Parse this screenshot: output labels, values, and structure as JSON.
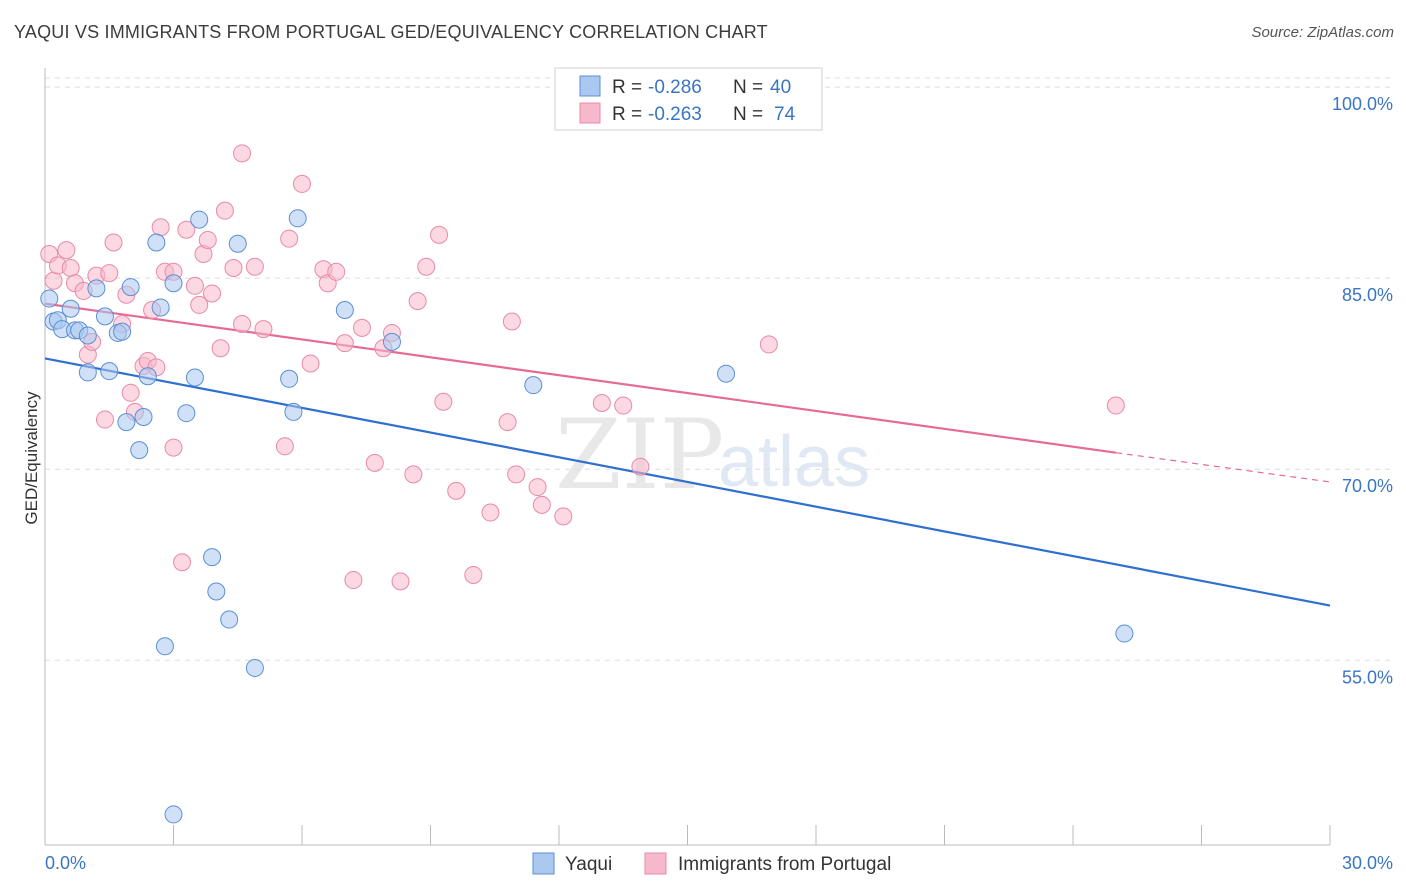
{
  "title": "YAQUI VS IMMIGRANTS FROM PORTUGAL GED/EQUIVALENCY CORRELATION CHART",
  "source": "Source: ZipAtlas.com",
  "watermark": {
    "part1": "ZIP",
    "part2": "atlas"
  },
  "legend_top": [
    {
      "r_label": "R = ",
      "r_value": "-0.286",
      "n_label": "N = ",
      "n_value": "40"
    },
    {
      "r_label": "R = ",
      "r_value": "-0.263",
      "n_label": "N = ",
      "n_value": "74"
    }
  ],
  "colors": {
    "blue_fill": "#aac8f0",
    "blue_stroke": "#5b8fd6",
    "blue_line": "#2f6fcf",
    "pink_fill": "#f7b8cb",
    "pink_stroke": "#e98aa8",
    "pink_line": "#e56b96",
    "grid": "#dddddd",
    "axis_text": "#3a75c4"
  },
  "chart_data": {
    "type": "scatter",
    "title": "YAQUI VS IMMIGRANTS FROM PORTUGAL GED/EQUIVALENCY CORRELATION CHART",
    "xlabel": "",
    "ylabel": "GED/Equivalency",
    "xlim": [
      0,
      30
    ],
    "ylim": [
      40.5,
      101.5
    ],
    "x_tick_labels": [
      "0.0%",
      "30.0%"
    ],
    "y_ticks": [
      55,
      70,
      85,
      100
    ],
    "y_tick_labels": [
      "55.0%",
      "70.0%",
      "85.0%",
      "100.0%"
    ],
    "grid": true,
    "legend_position": "bottom",
    "series": [
      {
        "name": "Yaqui",
        "color": "#aac8f0",
        "trend": {
          "x": [
            0,
            30
          ],
          "y": [
            78.7,
            59.3
          ]
        },
        "points": [
          [
            0.1,
            83.4
          ],
          [
            0.2,
            81.6
          ],
          [
            0.3,
            81.7
          ],
          [
            0.4,
            81.0
          ],
          [
            0.6,
            82.6
          ],
          [
            0.7,
            80.9
          ],
          [
            0.8,
            80.9
          ],
          [
            1.0,
            80.5
          ],
          [
            1.0,
            77.6
          ],
          [
            1.2,
            84.2
          ],
          [
            1.4,
            82.0
          ],
          [
            1.5,
            77.7
          ],
          [
            1.7,
            80.7
          ],
          [
            1.8,
            80.8
          ],
          [
            1.9,
            73.7
          ],
          [
            2.0,
            84.3
          ],
          [
            2.2,
            71.5
          ],
          [
            2.3,
            74.1
          ],
          [
            2.4,
            77.3
          ],
          [
            2.6,
            87.8
          ],
          [
            2.7,
            82.7
          ],
          [
            3.0,
            84.6
          ],
          [
            3.3,
            74.4
          ],
          [
            3.5,
            77.2
          ],
          [
            3.6,
            89.6
          ],
          [
            3.9,
            63.1
          ],
          [
            4.0,
            60.4
          ],
          [
            4.3,
            58.2
          ],
          [
            4.5,
            87.7
          ],
          [
            2.8,
            56.1
          ],
          [
            4.9,
            54.4
          ],
          [
            5.7,
            77.1
          ],
          [
            5.8,
            74.5
          ],
          [
            5.9,
            89.7
          ],
          [
            7.0,
            82.5
          ],
          [
            8.1,
            80.0
          ],
          [
            11.4,
            76.6
          ],
          [
            15.9,
            77.5
          ],
          [
            3.0,
            42.9
          ],
          [
            25.2,
            57.1
          ]
        ]
      },
      {
        "name": "Immigrants from Portugal",
        "color": "#f7b8cb",
        "trend": {
          "x": [
            0,
            25.0
          ],
          "y": [
            83.0,
            71.3
          ]
        },
        "trend_dashed": {
          "x": [
            25.0,
            30
          ],
          "y": [
            71.3,
            69.0
          ]
        },
        "points": [
          [
            0.1,
            86.9
          ],
          [
            0.2,
            84.8
          ],
          [
            0.3,
            86.0
          ],
          [
            0.5,
            87.2
          ],
          [
            0.6,
            85.8
          ],
          [
            0.7,
            84.6
          ],
          [
            0.9,
            84.0
          ],
          [
            1.0,
            79.0
          ],
          [
            1.1,
            80.0
          ],
          [
            1.2,
            85.2
          ],
          [
            1.4,
            73.9
          ],
          [
            1.5,
            85.4
          ],
          [
            1.6,
            87.8
          ],
          [
            1.8,
            81.4
          ],
          [
            1.9,
            83.7
          ],
          [
            2.0,
            76.0
          ],
          [
            2.1,
            74.5
          ],
          [
            2.3,
            78.1
          ],
          [
            2.4,
            78.5
          ],
          [
            2.5,
            82.5
          ],
          [
            2.6,
            78.0
          ],
          [
            2.7,
            89.0
          ],
          [
            2.8,
            85.5
          ],
          [
            3.0,
            85.5
          ],
          [
            3.0,
            71.7
          ],
          [
            3.2,
            62.7
          ],
          [
            3.3,
            88.8
          ],
          [
            3.5,
            84.4
          ],
          [
            3.6,
            82.9
          ],
          [
            3.7,
            86.9
          ],
          [
            3.8,
            88.0
          ],
          [
            3.9,
            83.8
          ],
          [
            4.1,
            79.5
          ],
          [
            4.2,
            90.3
          ],
          [
            4.4,
            85.8
          ],
          [
            4.6,
            81.4
          ],
          [
            4.6,
            94.8
          ],
          [
            4.9,
            85.9
          ],
          [
            5.1,
            81.0
          ],
          [
            5.6,
            71.8
          ],
          [
            5.7,
            88.1
          ],
          [
            6.0,
            92.4
          ],
          [
            6.2,
            78.3
          ],
          [
            6.5,
            85.7
          ],
          [
            6.6,
            84.6
          ],
          [
            6.8,
            85.5
          ],
          [
            7.0,
            79.9
          ],
          [
            7.2,
            61.3
          ],
          [
            7.4,
            81.1
          ],
          [
            7.7,
            70.5
          ],
          [
            7.9,
            79.5
          ],
          [
            8.1,
            80.7
          ],
          [
            8.3,
            61.2
          ],
          [
            8.6,
            69.6
          ],
          [
            8.7,
            83.2
          ],
          [
            8.9,
            85.9
          ],
          [
            9.2,
            88.4
          ],
          [
            9.3,
            75.3
          ],
          [
            9.6,
            68.3
          ],
          [
            10.0,
            61.7
          ],
          [
            10.4,
            66.6
          ],
          [
            10.8,
            73.7
          ],
          [
            10.9,
            81.6
          ],
          [
            11.0,
            69.6
          ],
          [
            11.5,
            68.6
          ],
          [
            11.6,
            67.2
          ],
          [
            12.1,
            66.3
          ],
          [
            13.0,
            75.2
          ],
          [
            13.5,
            75.0
          ],
          [
            13.9,
            70.2
          ],
          [
            13.6,
            100.0
          ],
          [
            16.7,
            100.0
          ],
          [
            16.9,
            79.8
          ],
          [
            25.0,
            75.0
          ]
        ]
      }
    ]
  },
  "bottom_legend": [
    "Yaqui",
    "Immigrants from Portugal"
  ]
}
